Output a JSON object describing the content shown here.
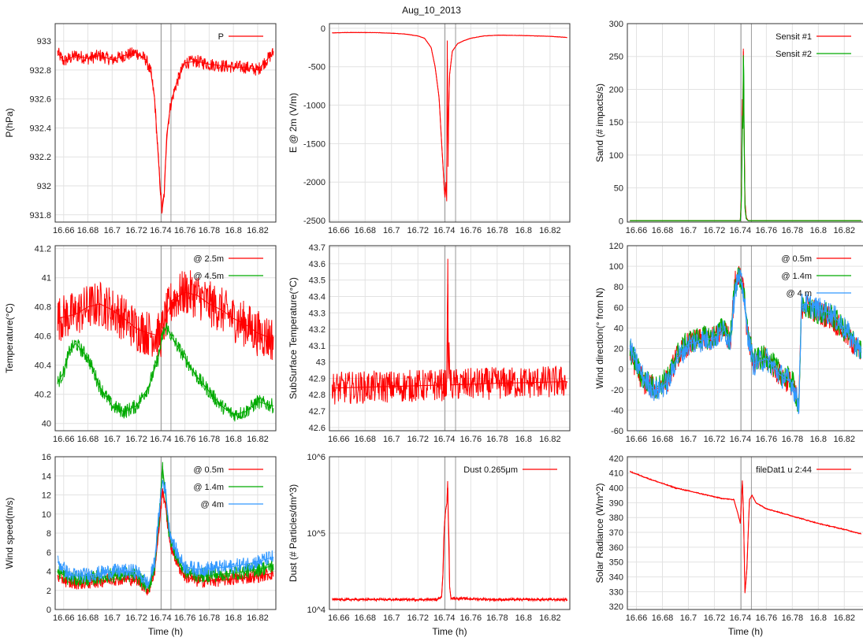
{
  "figure": {
    "title": "Aug_10_2013",
    "x_ticks": [
      "16.66",
      "16.68",
      "16.7",
      "16.72",
      "16.74",
      "16.76",
      "16.78",
      "16.8",
      "16.82"
    ],
    "x_tick_values": [
      16.66,
      16.68,
      16.7,
      16.72,
      16.74,
      16.76,
      16.78,
      16.8,
      16.82
    ],
    "xlim": [
      16.653,
      16.835
    ],
    "event_lines": [
      16.7405,
      16.7485
    ]
  },
  "chart_data": [
    {
      "type": "line",
      "panel": "pressure",
      "title": "",
      "xlabel": "",
      "ylabel": "P(hPa)",
      "ylim": [
        931.75,
        933.12
      ],
      "y_ticks": [
        "933",
        "932.8",
        "932.6",
        "932.4",
        "932.2",
        "932",
        "931.8"
      ],
      "y_tick_values": [
        933,
        932.8,
        932.6,
        932.4,
        932.2,
        932,
        931.8
      ],
      "legend_position": "top-right",
      "series": [
        {
          "name": "P",
          "color": "#ff0000",
          "noise": 0.045,
          "x": [
            16.655,
            16.66,
            16.67,
            16.68,
            16.69,
            16.7,
            16.71,
            16.72,
            16.728,
            16.732,
            16.735,
            16.738,
            16.741,
            16.743,
            16.745,
            16.748,
            16.752,
            16.756,
            16.76,
            16.77,
            16.78,
            16.79,
            16.8,
            16.81,
            16.82,
            16.833
          ],
          "y": [
            932.92,
            932.86,
            932.9,
            932.88,
            932.9,
            932.87,
            932.9,
            932.92,
            932.87,
            932.78,
            932.6,
            932.2,
            931.82,
            931.95,
            932.35,
            932.55,
            932.68,
            932.77,
            932.85,
            932.86,
            932.84,
            932.83,
            932.82,
            932.82,
            932.8,
            932.92
          ]
        }
      ]
    },
    {
      "type": "line",
      "panel": "e-field",
      "title": "",
      "xlabel": "",
      "ylabel": "E @ 2m (V/m)",
      "ylim": [
        -2520,
        60
      ],
      "y_ticks": [
        "0",
        "-500",
        "-1000",
        "-1500",
        "-2000",
        "-2500"
      ],
      "y_tick_values": [
        0,
        -500,
        -1000,
        -1500,
        -2000,
        -2500
      ],
      "legend_position": "none",
      "series": [
        {
          "name": "",
          "color": "#ff0000",
          "noise": 3,
          "x": [
            16.655,
            16.67,
            16.69,
            16.7,
            16.71,
            16.72,
            16.725,
            16.73,
            16.733,
            16.736,
            16.738,
            16.74,
            16.7405,
            16.7412,
            16.7418,
            16.7422,
            16.7428,
            16.7432,
            16.744,
            16.746,
            16.75,
            16.755,
            16.76,
            16.77,
            16.78,
            16.8,
            16.82,
            16.833
          ],
          "y": [
            -60,
            -55,
            -58,
            -65,
            -75,
            -100,
            -130,
            -250,
            -500,
            -900,
            -1500,
            -2100,
            -2200,
            -2000,
            -2250,
            -160,
            -1800,
            -1100,
            -600,
            -300,
            -200,
            -160,
            -130,
            -100,
            -90,
            -95,
            -105,
            -120
          ]
        }
      ]
    },
    {
      "type": "line",
      "panel": "sand",
      "title": "",
      "xlabel": "",
      "ylabel": "Sand (# impacts/s)",
      "ylim": [
        -2,
        300
      ],
      "y_ticks": [
        "300",
        "250",
        "200",
        "150",
        "100",
        "50",
        "0"
      ],
      "y_tick_values": [
        300,
        250,
        200,
        150,
        100,
        50,
        0
      ],
      "legend_position": "top-right",
      "series": [
        {
          "name": "Sensit #1",
          "color": "#ff0000",
          "noise": 0,
          "x": [
            16.655,
            16.74,
            16.7408,
            16.7412,
            16.7416,
            16.742,
            16.7423,
            16.7426,
            16.743,
            16.7435,
            16.7445,
            16.746,
            16.833
          ],
          "y": [
            0,
            0,
            40,
            120,
            185,
            150,
            262,
            175,
            120,
            30,
            5,
            0,
            0
          ]
        },
        {
          "name": "Sensit #2",
          "color": "#00aa00",
          "noise": 0,
          "x": [
            16.655,
            16.74,
            16.7408,
            16.7412,
            16.7416,
            16.742,
            16.7423,
            16.7426,
            16.743,
            16.7435,
            16.7445,
            16.746,
            16.833
          ],
          "y": [
            0,
            0,
            30,
            100,
            160,
            140,
            252,
            230,
            100,
            20,
            3,
            0,
            0
          ]
        }
      ]
    },
    {
      "type": "line",
      "panel": "temperature",
      "title": "",
      "xlabel": "",
      "ylabel": "Temperature(°C)",
      "ylim": [
        39.95,
        41.22
      ],
      "y_ticks": [
        "41.2",
        "41",
        "40.8",
        "40.6",
        "40.4",
        "40.2",
        "40"
      ],
      "y_tick_values": [
        41.2,
        41,
        40.8,
        40.6,
        40.4,
        40.2,
        40
      ],
      "legend_position": "top-right",
      "series": [
        {
          "name": "@ 2.5m",
          "color": "#ff0000",
          "noise": 0.16,
          "x": [
            16.655,
            16.67,
            16.68,
            16.69,
            16.7,
            16.71,
            16.72,
            16.73,
            16.74,
            16.745,
            16.75,
            16.76,
            16.77,
            16.78,
            16.79,
            16.8,
            16.81,
            16.82,
            16.833
          ],
          "y": [
            40.72,
            40.75,
            40.8,
            40.82,
            40.78,
            40.72,
            40.65,
            40.62,
            40.6,
            40.75,
            40.85,
            40.9,
            40.88,
            40.82,
            40.78,
            40.72,
            40.68,
            40.62,
            40.58
          ]
        },
        {
          "name": "@ 4.5m",
          "color": "#00aa00",
          "noise": 0.05,
          "x": [
            16.655,
            16.66,
            16.665,
            16.67,
            16.68,
            16.69,
            16.7,
            16.71,
            16.72,
            16.73,
            16.738,
            16.742,
            16.745,
            16.75,
            16.76,
            16.77,
            16.78,
            16.79,
            16.8,
            16.81,
            16.82,
            16.833
          ],
          "y": [
            40.28,
            40.35,
            40.5,
            40.55,
            40.45,
            40.25,
            40.12,
            40.08,
            40.12,
            40.25,
            40.45,
            40.62,
            40.66,
            40.58,
            40.45,
            40.32,
            40.22,
            40.12,
            40.06,
            40.08,
            40.15,
            40.12
          ]
        }
      ]
    },
    {
      "type": "line",
      "panel": "subsurface-temperature",
      "title": "",
      "xlabel": "",
      "ylabel": "SubSurface Temperature(°C)",
      "ylim": [
        42.58,
        43.71
      ],
      "y_ticks": [
        "43.7",
        "43.6",
        "43.5",
        "43.4",
        "43.3",
        "43.2",
        "43.1",
        "43",
        "42.9",
        "42.8",
        "42.7",
        "42.6"
      ],
      "y_tick_values": [
        43.7,
        43.6,
        43.5,
        43.4,
        43.3,
        43.2,
        43.1,
        43.0,
        42.9,
        42.8,
        42.7,
        42.6
      ],
      "legend_position": "none",
      "series": [
        {
          "name": "",
          "color": "#ff0000",
          "noise": 0.1,
          "x": [
            16.655,
            16.7,
            16.74,
            16.7418,
            16.7422,
            16.7426,
            16.743,
            16.7436,
            16.7442,
            16.745,
            16.78,
            16.833
          ],
          "y": [
            42.84,
            42.85,
            42.86,
            42.88,
            43.1,
            43.63,
            42.9,
            43.12,
            42.9,
            42.86,
            42.87,
            42.88
          ]
        }
      ]
    },
    {
      "type": "line",
      "panel": "wind-direction",
      "title": "",
      "xlabel": "",
      "ylabel": "Wind direction(° from N)",
      "ylim": [
        -60,
        120
      ],
      "y_ticks": [
        "120",
        "100",
        "80",
        "60",
        "40",
        "20",
        "0",
        "-20",
        "-40",
        "-60"
      ],
      "y_tick_values": [
        120,
        100,
        80,
        60,
        40,
        20,
        0,
        -20,
        -40,
        -60
      ],
      "legend_position": "top-right",
      "series": [
        {
          "name": "@ 0.5m",
          "color": "#ff0000",
          "noise": 12,
          "x": [
            16.655,
            16.665,
            16.675,
            16.685,
            16.69,
            16.7,
            16.71,
            16.72,
            16.728,
            16.732,
            16.736,
            16.739,
            16.742,
            16.745,
            16.75,
            16.76,
            16.77,
            16.78,
            16.785,
            16.787,
            16.79,
            16.8,
            16.81,
            16.82,
            16.833
          ],
          "y": [
            15,
            -12,
            -20,
            -10,
            10,
            25,
            28,
            30,
            40,
            25,
            85,
            95,
            88,
            40,
            5,
            10,
            -5,
            -15,
            -38,
            60,
            62,
            55,
            50,
            35,
            15
          ]
        },
        {
          "name": "@ 1.4m",
          "color": "#00aa00",
          "noise": 12,
          "x": [
            16.655,
            16.665,
            16.675,
            16.685,
            16.69,
            16.7,
            16.71,
            16.72,
            16.728,
            16.732,
            16.736,
            16.739,
            16.742,
            16.745,
            16.75,
            16.76,
            16.77,
            16.78,
            16.785,
            16.787,
            16.79,
            16.8,
            16.81,
            16.82,
            16.833
          ],
          "y": [
            18,
            -10,
            -18,
            -8,
            12,
            27,
            30,
            32,
            42,
            28,
            82,
            90,
            80,
            42,
            8,
            12,
            -3,
            -12,
            -35,
            58,
            60,
            55,
            52,
            38,
            18
          ]
        },
        {
          "name": "@ 4 m",
          "color": "#3399ff",
          "noise": 12,
          "x": [
            16.655,
            16.665,
            16.675,
            16.685,
            16.69,
            16.7,
            16.71,
            16.72,
            16.728,
            16.732,
            16.736,
            16.739,
            16.742,
            16.745,
            16.75,
            16.76,
            16.77,
            16.78,
            16.785,
            16.787,
            16.79,
            16.8,
            16.81,
            16.82,
            16.833
          ],
          "y": [
            20,
            -8,
            -22,
            -12,
            8,
            24,
            28,
            30,
            38,
            26,
            80,
            88,
            78,
            40,
            5,
            10,
            -5,
            -14,
            -36,
            62,
            64,
            58,
            54,
            40,
            16
          ]
        }
      ]
    },
    {
      "type": "line",
      "panel": "wind-speed",
      "title": "",
      "xlabel": "Time (h)",
      "ylabel": "Wind speed(m/s)",
      "ylim": [
        0,
        16
      ],
      "y_ticks": [
        "16",
        "14",
        "12",
        "10",
        "8",
        "6",
        "4",
        "2",
        "0"
      ],
      "y_tick_values": [
        16,
        14,
        12,
        10,
        8,
        6,
        4,
        2,
        0
      ],
      "legend_position": "top-right",
      "series": [
        {
          "name": "@ 0.5m",
          "color": "#ff0000",
          "noise": 0.7,
          "x": [
            16.655,
            16.665,
            16.68,
            16.7,
            16.72,
            16.73,
            16.735,
            16.739,
            16.7415,
            16.744,
            16.747,
            16.75,
            16.755,
            16.76,
            16.77,
            16.78,
            16.8,
            16.82,
            16.833
          ],
          "y": [
            3.5,
            2.8,
            2.8,
            3.2,
            3.2,
            2.0,
            4.0,
            9.0,
            12.5,
            11.0,
            7.5,
            6.0,
            4.5,
            3.5,
            3.0,
            3.0,
            3.2,
            3.5,
            3.8
          ]
        },
        {
          "name": "@ 1.4m",
          "color": "#00aa00",
          "noise": 0.8,
          "x": [
            16.655,
            16.665,
            16.68,
            16.7,
            16.72,
            16.73,
            16.735,
            16.739,
            16.7415,
            16.744,
            16.747,
            16.75,
            16.755,
            16.76,
            16.77,
            16.78,
            16.8,
            16.82,
            16.833
          ],
          "y": [
            4.0,
            3.2,
            3.2,
            3.6,
            3.6,
            2.2,
            4.5,
            10.0,
            15.0,
            12.0,
            8.0,
            6.5,
            5.0,
            4.0,
            3.6,
            3.6,
            3.8,
            4.2,
            4.6
          ]
        },
        {
          "name": "@ 4m",
          "color": "#3399ff",
          "noise": 0.8,
          "x": [
            16.655,
            16.665,
            16.68,
            16.7,
            16.72,
            16.73,
            16.735,
            16.739,
            16.7415,
            16.744,
            16.747,
            16.75,
            16.755,
            16.76,
            16.77,
            16.78,
            16.8,
            16.82,
            16.833
          ],
          "y": [
            5.0,
            3.6,
            3.6,
            4.0,
            4.0,
            2.6,
            5.0,
            10.5,
            13.5,
            12.5,
            8.5,
            7.0,
            5.5,
            4.5,
            4.2,
            4.3,
            4.5,
            5.0,
            5.5
          ]
        }
      ]
    },
    {
      "type": "line",
      "panel": "dust",
      "title": "",
      "xlabel": "Time (h)",
      "ylabel": "Dust (# Particles/dm^3)",
      "y_scale": "log",
      "ylim": [
        10000,
        1000000
      ],
      "y_ticks": [
        "10^6",
        "10^5",
        "10^4"
      ],
      "y_tick_values": [
        1000000,
        100000,
        10000
      ],
      "legend_position": "top-right",
      "series": [
        {
          "name": "Dust 0.265μm",
          "color": "#ff0000",
          "noise": 600,
          "x": [
            16.655,
            16.7,
            16.735,
            16.738,
            16.739,
            16.74,
            16.741,
            16.742,
            16.7425,
            16.743,
            16.744,
            16.745,
            16.78,
            16.833
          ],
          "y": [
            13500,
            13500,
            13500,
            15000,
            30000,
            120000,
            200000,
            250000,
            480000,
            150000,
            20000,
            14000,
            13500,
            13500
          ]
        }
      ]
    },
    {
      "type": "line",
      "panel": "solar-radiance",
      "title": "",
      "xlabel": "Time (h)",
      "ylabel": "Solar Radiance (Wm^2)",
      "ylim": [
        318,
        421
      ],
      "y_ticks": [
        "420",
        "410",
        "400",
        "390",
        "380",
        "370",
        "360",
        "350",
        "340",
        "330",
        "320"
      ],
      "y_tick_values": [
        420,
        410,
        400,
        390,
        380,
        370,
        360,
        350,
        340,
        330,
        320
      ],
      "legend_position": "top-right",
      "series": [
        {
          "name": "fileDat1 u 2:44",
          "color": "#ff0000",
          "noise": 0.4,
          "x": [
            16.655,
            16.67,
            16.69,
            16.71,
            16.725,
            16.735,
            16.738,
            16.74,
            16.7415,
            16.7425,
            16.7435,
            16.745,
            16.747,
            16.749,
            16.752,
            16.76,
            16.78,
            16.8,
            16.82,
            16.833
          ],
          "y": [
            411,
            406,
            400,
            396,
            393,
            392,
            383,
            376,
            405,
            380,
            329,
            345,
            392,
            395,
            390,
            386,
            381,
            376,
            372,
            369
          ]
        }
      ]
    }
  ]
}
